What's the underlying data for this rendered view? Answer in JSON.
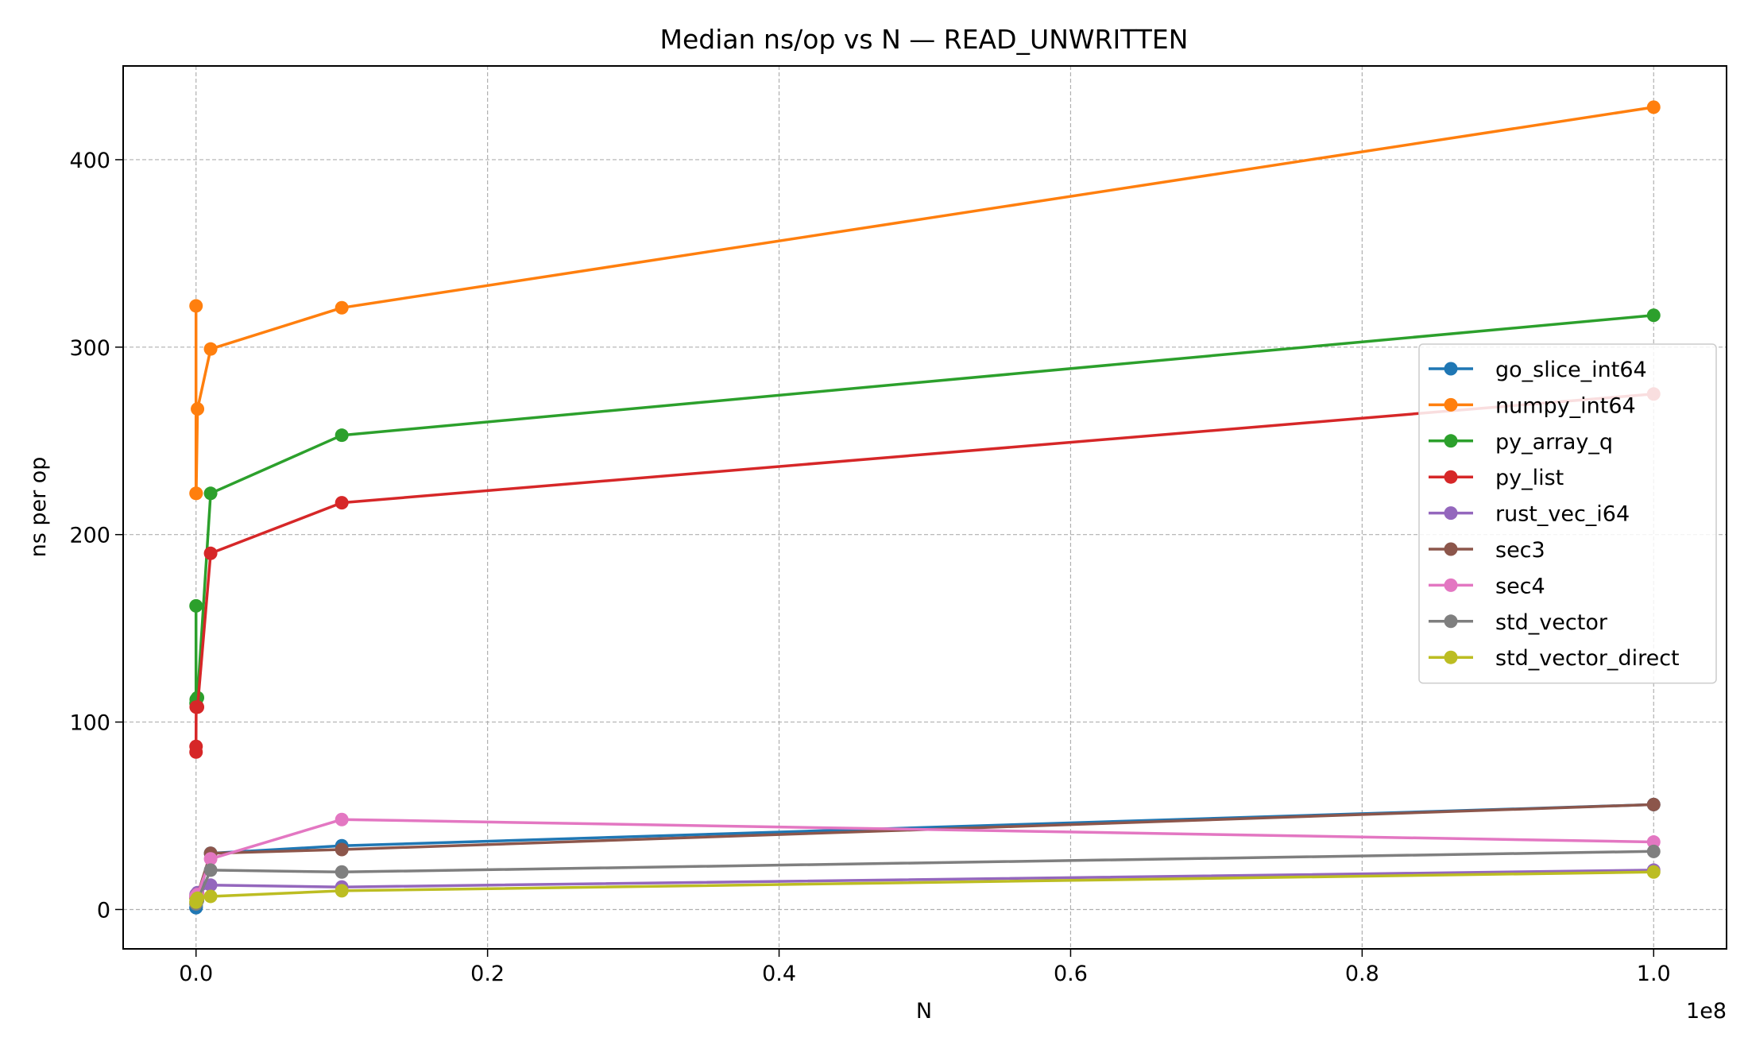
{
  "chart_data": {
    "type": "line",
    "title": "Median ns/op vs N — READ_UNWRITTEN",
    "xlabel": "N",
    "ylabel": "ns per op",
    "x_offset_text": "1e8",
    "xlim": [
      -5000000,
      105000000
    ],
    "ylim": [
      -21,
      450
    ],
    "xticks": [
      0,
      20000000,
      40000000,
      60000000,
      80000000,
      100000000
    ],
    "xtick_labels": [
      "0.0",
      "0.2",
      "0.4",
      "0.6",
      "0.8",
      "1.0"
    ],
    "yticks": [
      0,
      100,
      200,
      300,
      400
    ],
    "ytick_labels": [
      "0",
      "100",
      "200",
      "300",
      "400"
    ],
    "grid": true,
    "legend_position": "center-right",
    "series": [
      {
        "name": "go_slice_int64",
        "color": "#1f77b4",
        "x": [
          100,
          1000,
          10000,
          100000,
          1000000,
          10000000,
          100000000
        ],
        "y": [
          1,
          1,
          2,
          5,
          30,
          34,
          56
        ]
      },
      {
        "name": "numpy_int64",
        "color": "#ff7f0e",
        "x": [
          100,
          1000,
          10000,
          100000,
          1000000,
          10000000,
          100000000
        ],
        "y": [
          322,
          222,
          222,
          267,
          299,
          321,
          428
        ]
      },
      {
        "name": "py_array_q",
        "color": "#2ca02c",
        "x": [
          100,
          1000,
          10000,
          100000,
          1000000,
          10000000,
          100000000
        ],
        "y": [
          162,
          110,
          112,
          113,
          222,
          253,
          317
        ]
      },
      {
        "name": "py_list",
        "color": "#d62728",
        "x": [
          100,
          1000,
          10000,
          100000,
          1000000,
          10000000,
          100000000
        ],
        "y": [
          84,
          87,
          108,
          108,
          190,
          217,
          275
        ]
      },
      {
        "name": "rust_vec_i64",
        "color": "#9467bd",
        "x": [
          100,
          1000,
          10000,
          100000,
          1000000,
          10000000,
          100000000
        ],
        "y": [
          7,
          8,
          8,
          9,
          13,
          12,
          21
        ]
      },
      {
        "name": "sec3",
        "color": "#8c564b",
        "x": [
          100,
          1000,
          10000,
          100000,
          1000000,
          10000000,
          100000000
        ],
        "y": [
          6,
          6,
          7,
          8,
          30,
          32,
          56
        ]
      },
      {
        "name": "sec4",
        "color": "#e377c2",
        "x": [
          100,
          1000,
          10000,
          100000,
          1000000,
          10000000,
          100000000
        ],
        "y": [
          7,
          7,
          7,
          8,
          27,
          48,
          36
        ]
      },
      {
        "name": "std_vector",
        "color": "#7f7f7f",
        "x": [
          100,
          1000,
          10000,
          100000,
          1000000,
          10000000,
          100000000
        ],
        "y": [
          3,
          3,
          4,
          5,
          21,
          20,
          31
        ]
      },
      {
        "name": "std_vector_direct",
        "color": "#bcbd22",
        "x": [
          100,
          1000,
          10000,
          100000,
          1000000,
          10000000,
          100000000
        ],
        "y": [
          4,
          4,
          5,
          6,
          7,
          10,
          20
        ]
      }
    ]
  }
}
